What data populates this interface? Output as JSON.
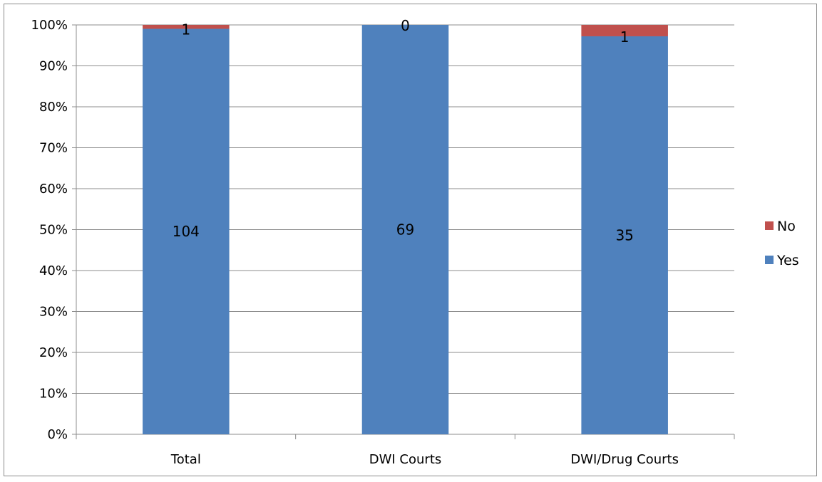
{
  "chart_data": {
    "type": "bar",
    "stacked": true,
    "percent_stacked": true,
    "categories": [
      "Total",
      "DWI Courts",
      "DWI/Drug Courts"
    ],
    "series": [
      {
        "name": "Yes",
        "color": "#4f81bd",
        "values": [
          104,
          69,
          35
        ]
      },
      {
        "name": "No",
        "color": "#c0504d",
        "values": [
          1,
          0,
          1
        ]
      }
    ],
    "yaxis": {
      "ylim": [
        0,
        100
      ],
      "ticks": [
        "0%",
        "10%",
        "20%",
        "30%",
        "40%",
        "50%",
        "60%",
        "70%",
        "80%",
        "90%",
        "100%"
      ]
    },
    "grid": true,
    "legend": {
      "position": "right",
      "entries": [
        "No",
        "Yes"
      ]
    }
  }
}
